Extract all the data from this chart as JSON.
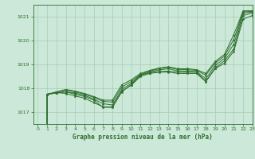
{
  "title": "Graphe pression niveau de la mer (hPa)",
  "bg_color": "#cce8d8",
  "line_color": "#2d6e2d",
  "grid_color": "#a8ccb8",
  "xlim": [
    -0.5,
    23
  ],
  "ylim": [
    1016.5,
    1021.5
  ],
  "yticks": [
    1017,
    1018,
    1019,
    1020,
    1021
  ],
  "xticks": [
    0,
    1,
    2,
    3,
    4,
    5,
    6,
    7,
    8,
    9,
    10,
    11,
    12,
    13,
    14,
    15,
    16,
    17,
    18,
    19,
    20,
    21,
    22,
    23
  ],
  "lines": [
    [
      0,
      1017.75,
      1017.8,
      1017.85,
      1017.75,
      1017.65,
      1017.5,
      1017.2,
      1017.2,
      1017.85,
      1018.15,
      1018.55,
      1018.65,
      1018.7,
      1018.72,
      1018.67,
      1018.67,
      1018.67,
      1018.3,
      1018.85,
      1019.15,
      1019.65,
      1021.05,
      1021.15
    ],
    [
      0,
      1017.75,
      1017.8,
      1017.85,
      1017.8,
      1017.7,
      1017.55,
      1017.35,
      1017.3,
      1017.95,
      1018.2,
      1018.55,
      1018.68,
      1018.77,
      1018.82,
      1018.72,
      1018.72,
      1018.7,
      1018.4,
      1018.95,
      1019.25,
      1019.85,
      1021.15,
      1021.2
    ],
    [
      0,
      1017.75,
      1017.82,
      1017.92,
      1017.85,
      1017.75,
      1017.62,
      1017.45,
      1017.42,
      1018.05,
      1018.28,
      1018.58,
      1018.72,
      1018.82,
      1018.88,
      1018.78,
      1018.78,
      1018.75,
      1018.55,
      1019.05,
      1019.35,
      1020.05,
      1021.2,
      1021.22
    ],
    [
      0,
      1017.75,
      1017.82,
      1017.78,
      1017.68,
      1017.58,
      1017.4,
      1017.22,
      1017.22,
      1017.88,
      1018.12,
      1018.5,
      1018.62,
      1018.67,
      1018.68,
      1018.62,
      1018.62,
      1018.62,
      1018.28,
      1018.82,
      1019.05,
      1019.55,
      1020.9,
      1021.05
    ],
    [
      0,
      1017.75,
      1017.85,
      1017.95,
      1017.88,
      1017.78,
      1017.65,
      1017.5,
      1017.5,
      1018.15,
      1018.35,
      1018.62,
      1018.75,
      1018.85,
      1018.9,
      1018.82,
      1018.82,
      1018.78,
      1018.62,
      1019.12,
      1019.42,
      1020.25,
      1021.25,
      1021.25
    ]
  ]
}
